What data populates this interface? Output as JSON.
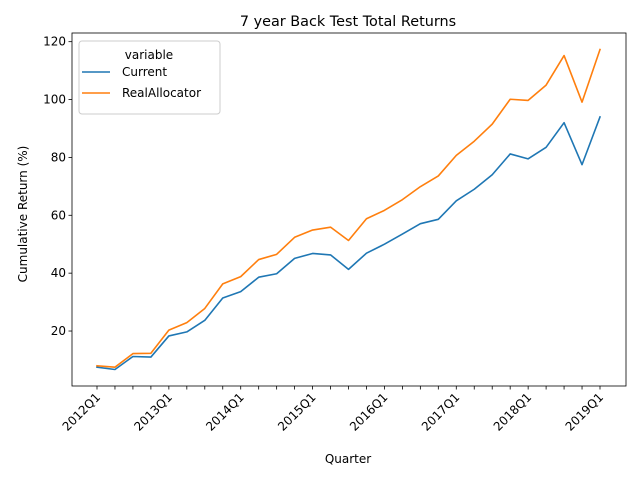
{
  "chart_data": {
    "type": "line",
    "title": "7 year Back Test Total Returns",
    "xlabel": "Quarter",
    "ylabel": "Cumulative Return (%)",
    "x": [
      "2012Q1",
      "2012Q2",
      "2012Q3",
      "2012Q4",
      "2013Q1",
      "2013Q2",
      "2013Q3",
      "2013Q4",
      "2014Q1",
      "2014Q2",
      "2014Q3",
      "2014Q4",
      "2015Q1",
      "2015Q2",
      "2015Q3",
      "2015Q4",
      "2016Q1",
      "2016Q2",
      "2016Q3",
      "2016Q4",
      "2017Q1",
      "2017Q2",
      "2017Q3",
      "2017Q4",
      "2018Q1",
      "2018Q2",
      "2018Q3",
      "2018Q4",
      "2019Q1"
    ],
    "xtick_labels": [
      "2012Q1",
      "2013Q1",
      "2014Q1",
      "2015Q1",
      "2016Q1",
      "2017Q1",
      "2018Q1",
      "2019Q1"
    ],
    "yticks": [
      20,
      40,
      60,
      80,
      100,
      120
    ],
    "ylim": [
      1,
      123
    ],
    "grid": false,
    "legend": {
      "title": "variable",
      "placement": "top-left"
    },
    "series": [
      {
        "name": "Current",
        "color": "#1f77b4",
        "values": [
          7.5,
          6.7,
          11.2,
          11.0,
          18.3,
          19.7,
          23.7,
          31.4,
          33.6,
          38.6,
          39.8,
          45.1,
          46.8,
          46.3,
          41.3,
          46.9,
          50.0,
          53.5,
          57.1,
          58.6,
          65.0,
          69.0,
          74.0,
          81.2,
          79.5,
          83.5,
          92.0,
          77.5,
          94.0
        ]
      },
      {
        "name": "RealAllocator",
        "color": "#ff7f0e",
        "values": [
          8.0,
          7.5,
          12.2,
          12.3,
          20.3,
          22.9,
          27.8,
          36.3,
          38.8,
          44.7,
          46.5,
          52.4,
          54.9,
          55.9,
          51.3,
          58.8,
          61.7,
          65.4,
          69.9,
          73.6,
          80.7,
          85.6,
          91.5,
          100.1,
          99.7,
          105.0,
          115.2,
          99.1,
          117.3
        ]
      }
    ]
  }
}
